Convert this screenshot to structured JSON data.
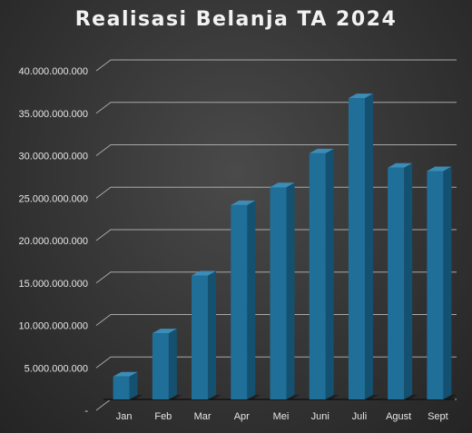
{
  "chart_data": {
    "type": "bar",
    "title": "Realisasi Belanja TA 2024",
    "categories": [
      "Jan",
      "Feb",
      "Mar",
      "Apr",
      "Mei",
      "Juni",
      "Juli",
      "Agust",
      "Sept"
    ],
    "values": [
      2700000000,
      7800000000,
      14600000000,
      22900000000,
      25000000000,
      29000000000,
      35500000000,
      27300000000,
      26900000000
    ],
    "ylim": [
      0,
      40000000000
    ],
    "yticks": [
      0,
      5000000000,
      10000000000,
      15000000000,
      20000000000,
      25000000000,
      30000000000,
      35000000000,
      40000000000
    ],
    "ytick_labels": [
      "-",
      "5.000.000.000",
      "10.000.000.000",
      "15.000.000.000",
      "20.000.000.000",
      "25.000.000.000",
      "30.000.000.000",
      "35.000.000.000",
      "40.000.000.000"
    ],
    "xlabel": "",
    "ylabel": "",
    "grid": true,
    "legend": "none",
    "bar_style": "3d",
    "colors": {
      "bar_front": "#1f6f98",
      "bar_top": "#3b8db8",
      "bar_side": "#14506f",
      "grid": "#a8a8a8",
      "text": "#e6e6e6",
      "title": "#f2f2f2"
    }
  }
}
